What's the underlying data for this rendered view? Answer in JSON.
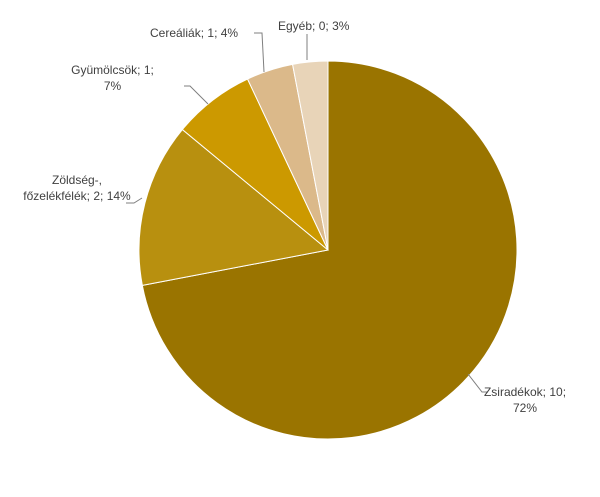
{
  "chart_data": {
    "type": "pie",
    "categories": [
      "Zsiradékok",
      "Zöldség-, főzelékfélék",
      "Gyümölcsök",
      "Cereáliák",
      "Egyéb"
    ],
    "values": [
      10,
      2,
      1,
      1,
      0
    ],
    "percents": [
      72,
      14,
      7,
      4,
      3
    ],
    "percent_labels": [
      "72%",
      "14%",
      "7%",
      "4%",
      "3%"
    ],
    "label_separator": "; ",
    "colors": [
      "#9a7400",
      "#b8900f",
      "#cc9900",
      "#dbb98a",
      "#e8d4b8"
    ]
  }
}
